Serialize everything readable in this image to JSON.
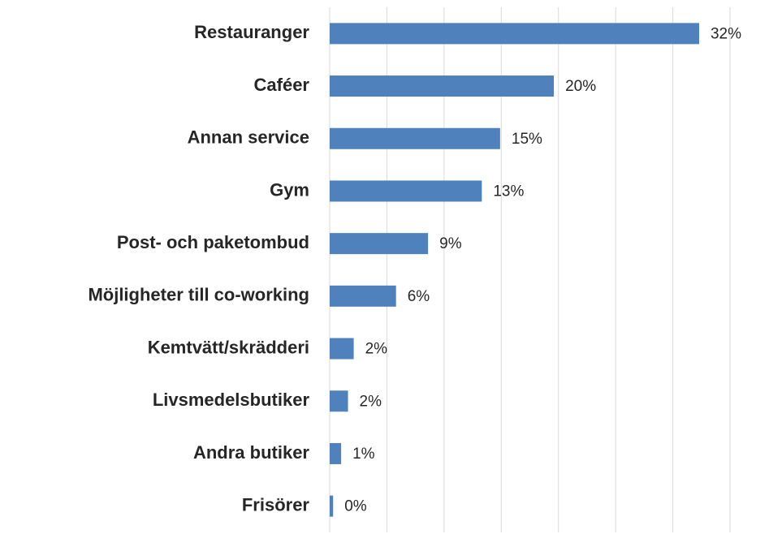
{
  "chart_data": {
    "type": "bar",
    "orientation": "horizontal",
    "categories": [
      "Restauranger",
      "Caféer",
      "Annan service",
      "Gym",
      "Post- och paketombud",
      "Möjligheter till co-working",
      "Kemtvätt/skrädderi",
      "Livsmedelsbutiker",
      "Andra butiker",
      "Frisörer"
    ],
    "values": [
      32.3,
      19.6,
      14.9,
      13.3,
      8.6,
      5.8,
      2.1,
      1.6,
      1.0,
      0.3
    ],
    "value_labels": [
      "32%",
      "20%",
      "15%",
      "13%",
      "9%",
      "6%",
      "2%",
      "2%",
      "1%",
      "0%"
    ],
    "color": "#4f81bd",
    "xlim": [
      0,
      35
    ],
    "xticks": [
      0,
      5,
      10,
      15,
      20,
      25,
      30,
      35
    ],
    "grid": true
  }
}
